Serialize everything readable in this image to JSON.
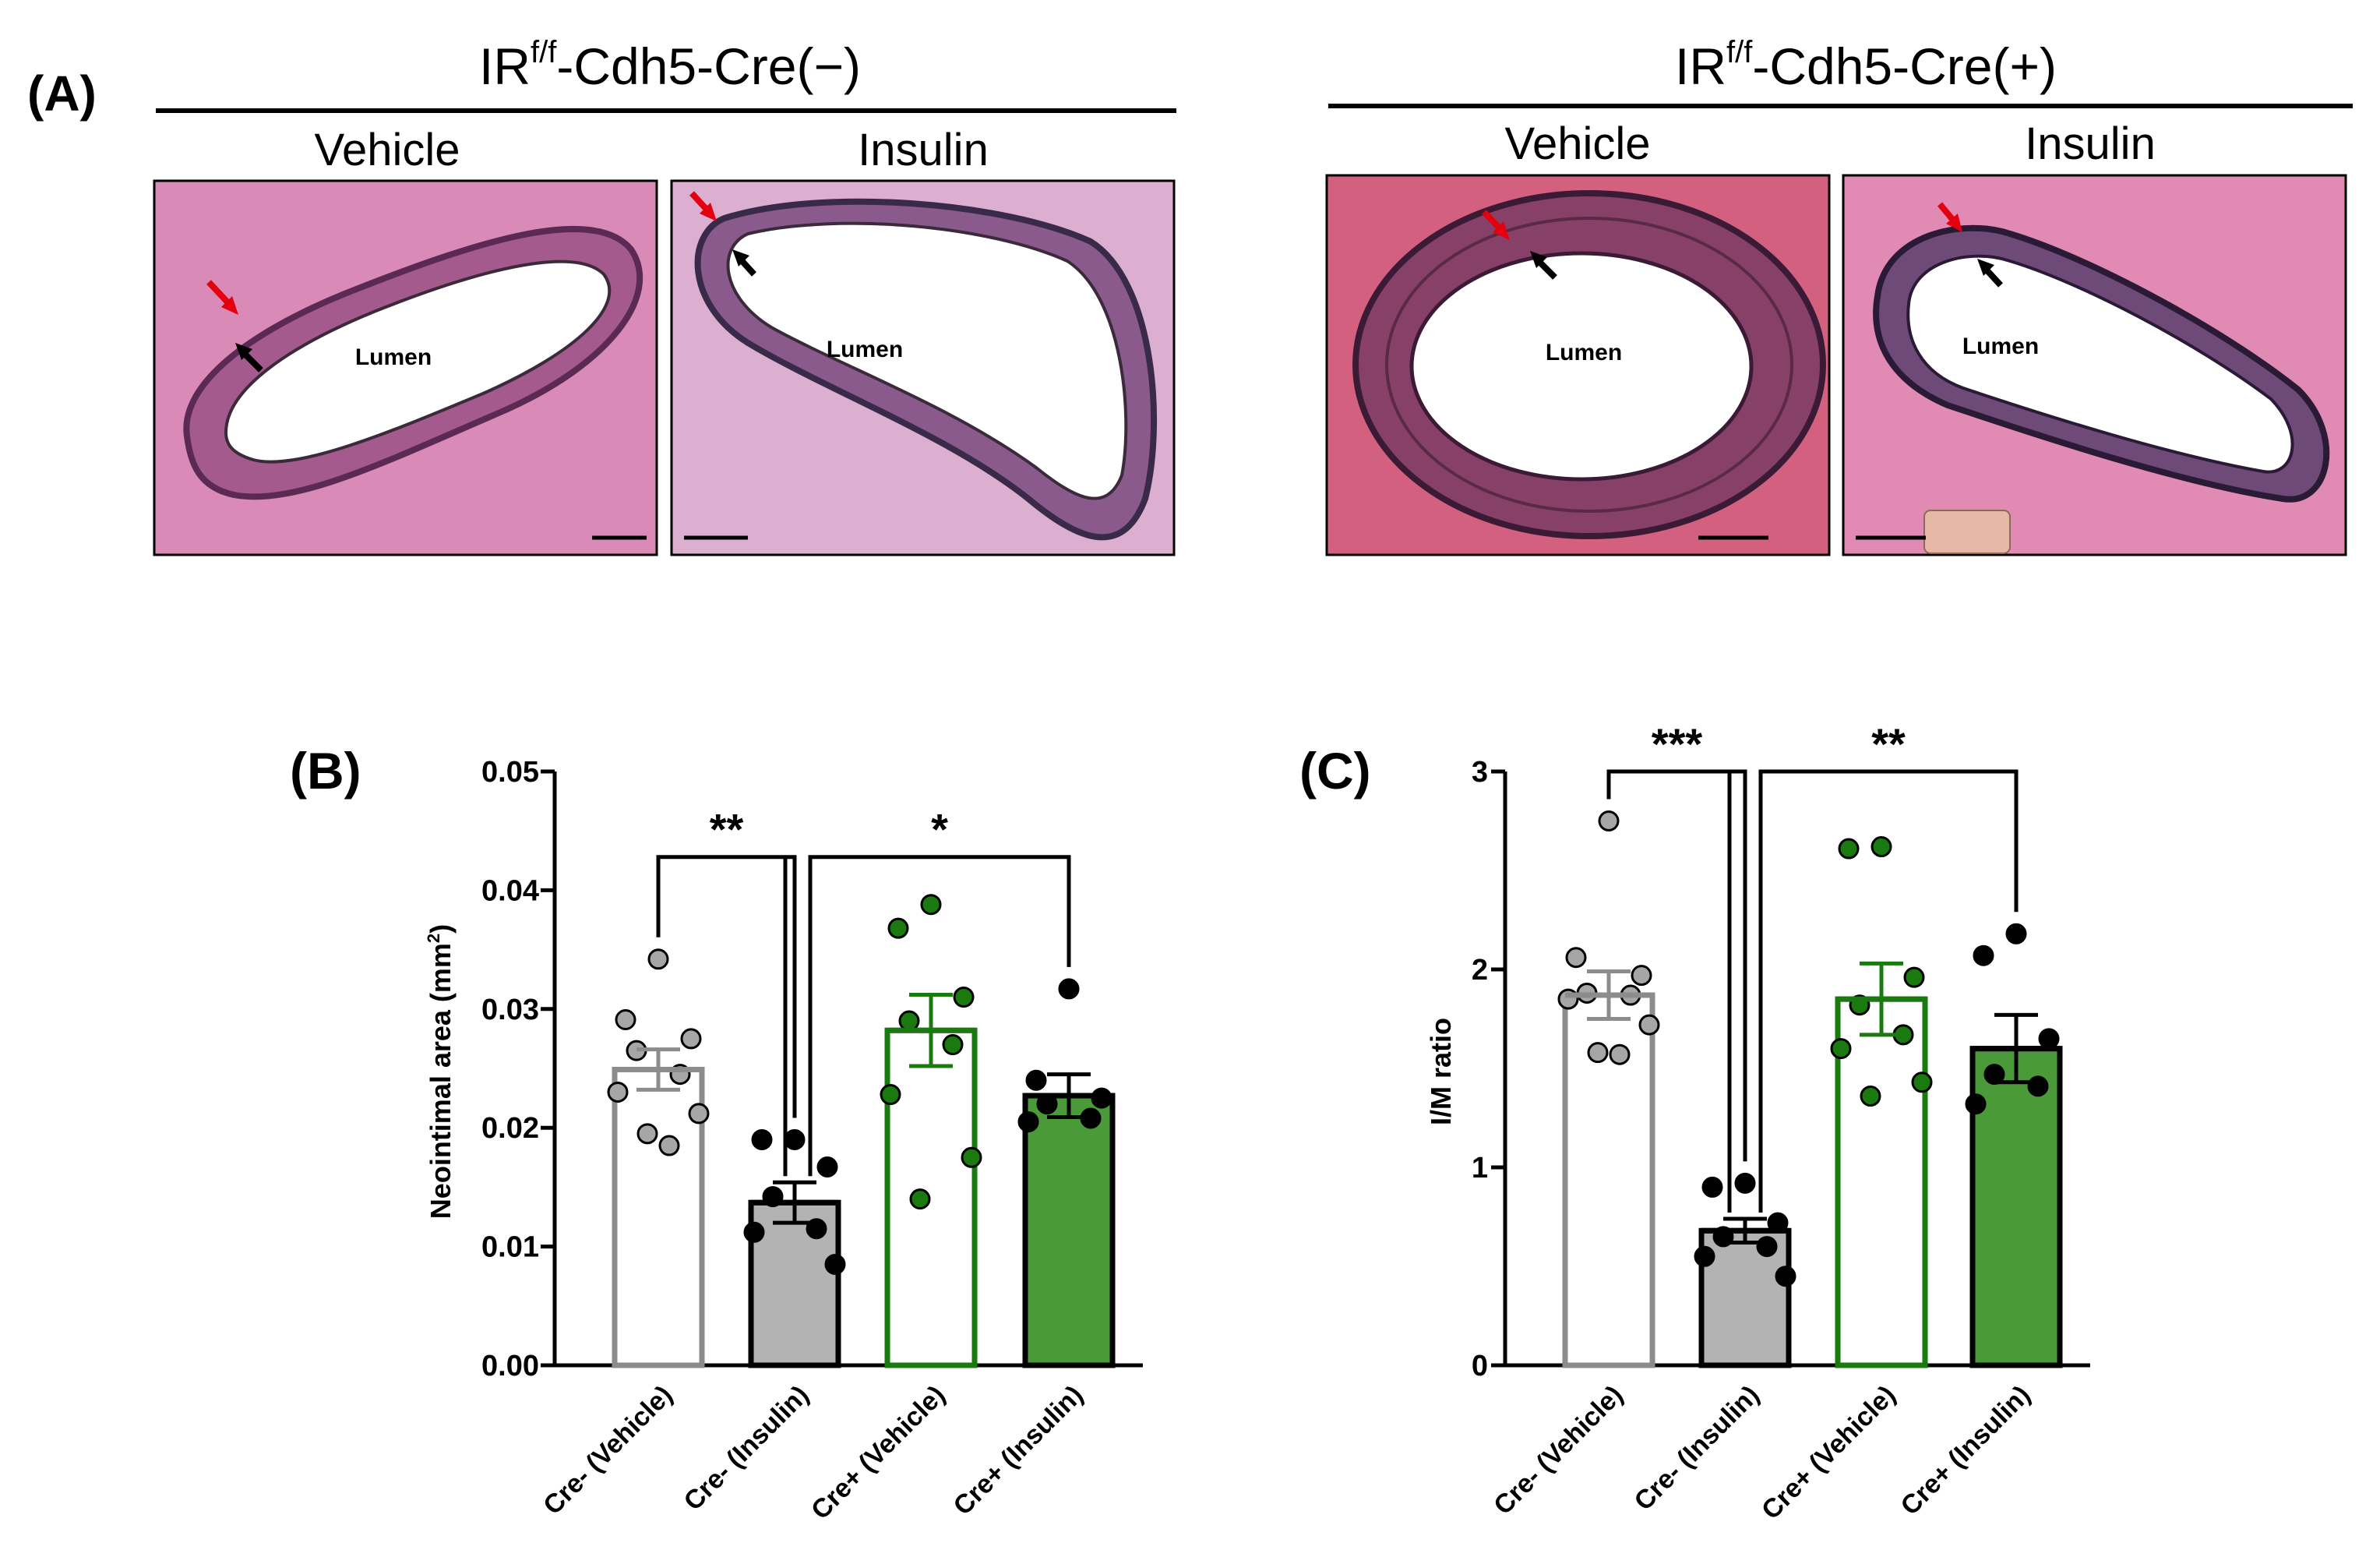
{
  "panel_a": {
    "label": "(A)",
    "groups": [
      {
        "title_prefix": "IR",
        "title_sup": "f/f",
        "title_suffix": "-Cdh5-Cre(−)",
        "images": [
          {
            "label": "Vehicle",
            "lumen_label": "Lumen",
            "stain_color": "#d98ab6",
            "wall_color": "#a45a8c"
          },
          {
            "label": "Insulin",
            "lumen_label": "Lumen",
            "stain_color": "#dcaed0",
            "wall_color": "#8a5a8c"
          }
        ]
      },
      {
        "title_prefix": "IR",
        "title_sup": "f/f",
        "title_suffix": "-Cdh5-Cre(+)",
        "images": [
          {
            "label": "Vehicle",
            "lumen_label": "Lumen",
            "stain_color": "#d2607e",
            "wall_color": "#874068"
          },
          {
            "label": "Insulin",
            "lumen_label": "Lumen",
            "stain_color": "#e08ab4",
            "wall_color": "#6e4a78"
          }
        ]
      }
    ]
  },
  "chart_data": [
    {
      "type": "bar",
      "panel_label": "(B)",
      "ylabel": "Neointimal area (mm",
      "ylabel_sup": "2",
      "ylabel_end": ")",
      "ylim": [
        0,
        0.05
      ],
      "yticks": [
        0.0,
        0.01,
        0.02,
        0.03,
        0.04,
        0.05
      ],
      "ytick_labels": [
        "0.00",
        "0.01",
        "0.02",
        "0.03",
        "0.04",
        "0.05"
      ],
      "categories": [
        "Cre- (Vehicle)",
        "Cre- (Insulin)",
        "Cre+ (Vehicle)",
        "Cre+ (Insulin)"
      ],
      "bar_fill": [
        "#ffffff",
        "#b3b3b3",
        "#ffffff",
        "#4a9a3a"
      ],
      "bar_edge": [
        "#8c8c8c",
        "#000000",
        "#1a7a10",
        "#000000"
      ],
      "dot_color": [
        "#a6a6a6",
        "#000000",
        "#1a7a10",
        "#000000"
      ],
      "means": [
        0.0249,
        0.0137,
        0.0282,
        0.0227
      ],
      "sem": [
        0.0017,
        0.0017,
        0.003,
        0.0018
      ],
      "points": [
        [
          0.0342,
          0.0291,
          0.0275,
          0.0265,
          0.0245,
          0.023,
          0.0212,
          0.0195,
          0.0185
        ],
        [
          0.019,
          0.019,
          0.0167,
          0.0142,
          0.0115,
          0.0112,
          0.0085
        ],
        [
          0.0388,
          0.0368,
          0.031,
          0.029,
          0.027,
          0.0228,
          0.0175,
          0.014
        ],
        [
          0.0317,
          0.024,
          0.0225,
          0.022,
          0.0208,
          0.0205
        ]
      ],
      "comparisons": [
        {
          "from": 0,
          "to": 1,
          "label": "**",
          "y": 0.0428
        },
        {
          "from": 1,
          "to": 3,
          "label": "*",
          "y": 0.0428
        }
      ]
    },
    {
      "type": "bar",
      "panel_label": "(C)",
      "ylabel": "I/M ratio",
      "ylim": [
        0,
        3
      ],
      "yticks": [
        0,
        1,
        2,
        3
      ],
      "ytick_labels": [
        "0",
        "1",
        "2",
        "3"
      ],
      "categories": [
        "Cre- (Vehicle)",
        "Cre- (Insulin)",
        "Cre+ (Vehicle)",
        "Cre+ (Insulin)"
      ],
      "bar_fill": [
        "#ffffff",
        "#b3b3b3",
        "#ffffff",
        "#4a9a3a"
      ],
      "bar_edge": [
        "#8c8c8c",
        "#000000",
        "#1a7a10",
        "#000000"
      ],
      "dot_color": [
        "#a6a6a6",
        "#000000",
        "#1a7a10",
        "#000000"
      ],
      "means": [
        1.87,
        0.68,
        1.85,
        1.6
      ],
      "sem": [
        0.12,
        0.06,
        0.18,
        0.17
      ],
      "points": [
        [
          2.75,
          2.06,
          1.97,
          1.88,
          1.87,
          1.85,
          1.72,
          1.58,
          1.57
        ],
        [
          0.92,
          0.9,
          0.72,
          0.65,
          0.6,
          0.55,
          0.45
        ],
        [
          2.62,
          2.61,
          1.96,
          1.82,
          1.67,
          1.6,
          1.43,
          1.36
        ],
        [
          2.18,
          2.07,
          1.65,
          1.47,
          1.41,
          1.32
        ]
      ],
      "comparisons": [
        {
          "from": 0,
          "to": 1,
          "label": "***",
          "y": 3.0
        },
        {
          "from": 1,
          "to": 3,
          "label": "**",
          "y": 3.0
        }
      ]
    }
  ]
}
